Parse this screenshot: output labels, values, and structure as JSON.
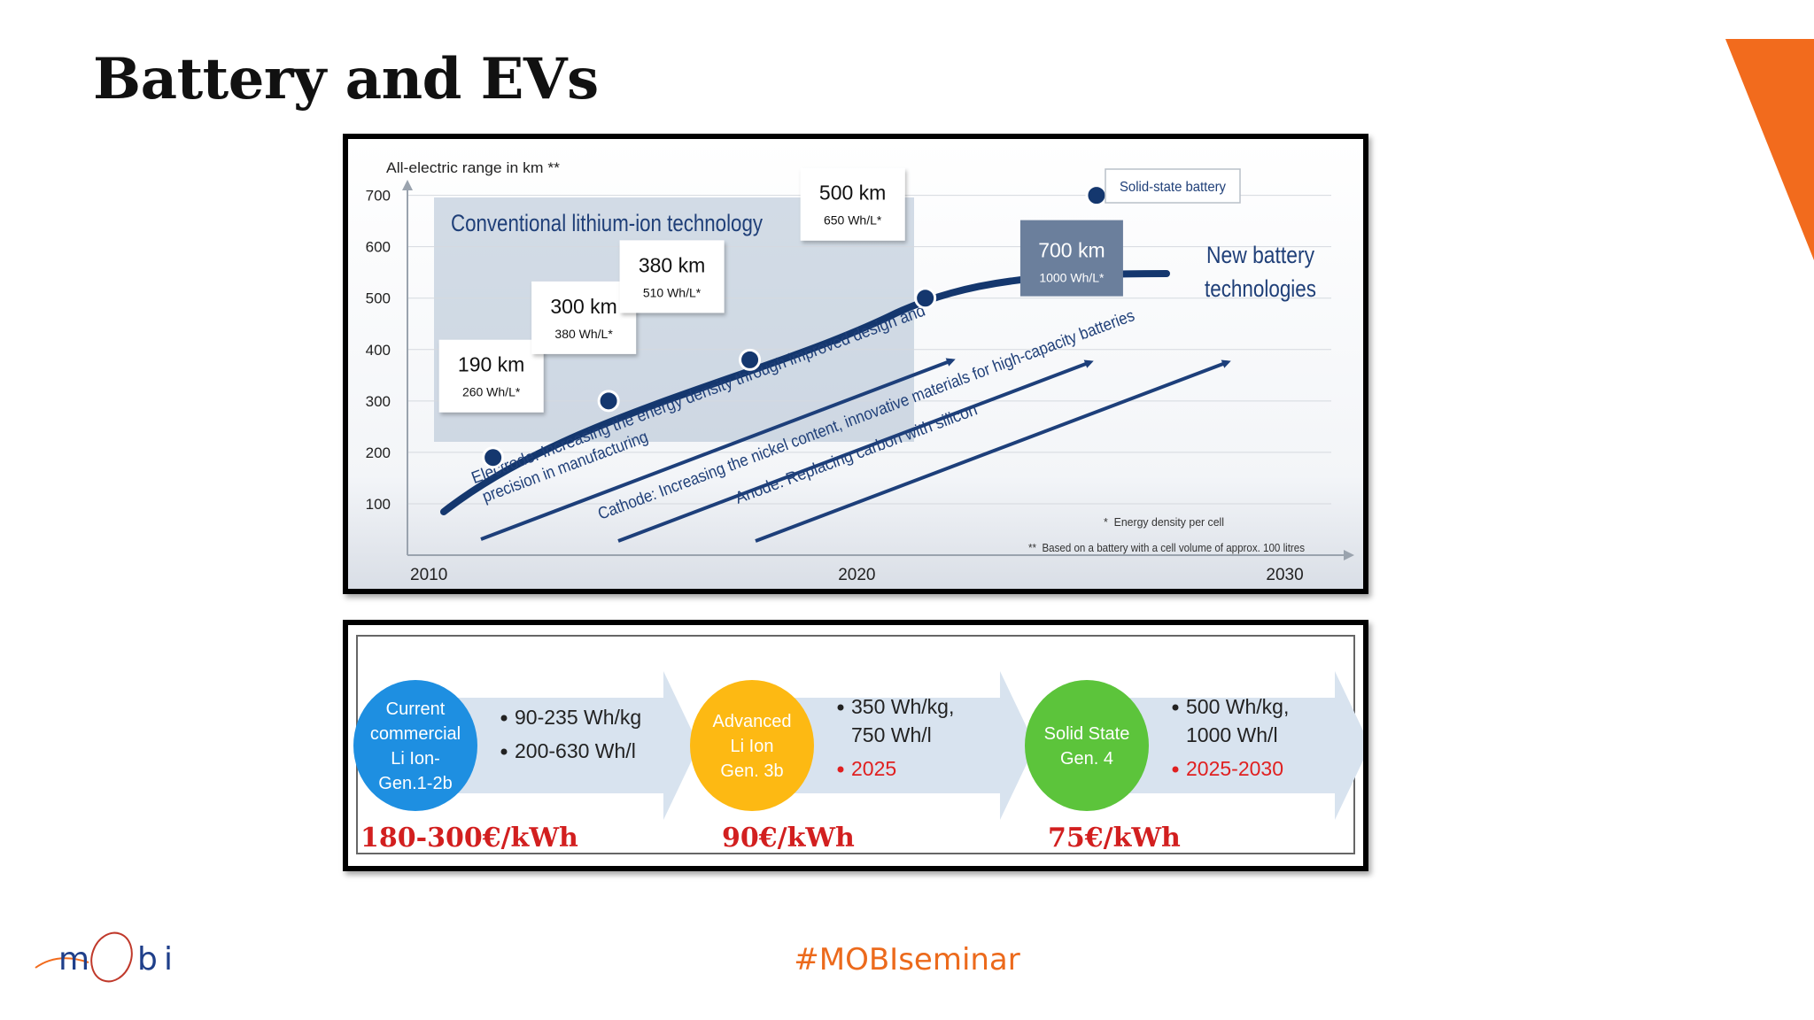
{
  "slide": {
    "title": "Battery and EVs",
    "hashtag": "#MOBIseminar",
    "logo_text": "mObi",
    "accent_color": "#f26b1d"
  },
  "chart_data": {
    "type": "line",
    "ylabel": "All-electric range in km **",
    "y_ticks": [
      "100",
      "200",
      "300",
      "400",
      "500",
      "600",
      "700"
    ],
    "ylim": [
      0,
      720
    ],
    "x_ticks": [
      "2010",
      "2020",
      "2030"
    ],
    "xlim": [
      2009.5,
      2031.5
    ],
    "series": [
      {
        "points": [
          {
            "x": 2011.5,
            "y": 190,
            "range": "190 km",
            "density": "260 Wh/L*"
          },
          {
            "x": 2014.2,
            "y": 300,
            "range": "300 km",
            "density": "380 Wh/L*"
          },
          {
            "x": 2017.5,
            "y": 380,
            "range": "380 km",
            "density": "510 Wh/L*"
          },
          {
            "x": 2021.6,
            "y": 500,
            "range": "500 km",
            "density": "650 Wh/L*"
          },
          {
            "x": 2025.6,
            "y": 700,
            "range": "700 km",
            "density": "1000 Wh/L*"
          }
        ]
      }
    ],
    "region_label": "Conventional lithium-ion technology",
    "new_tech_label": [
      "New battery",
      "technologies"
    ],
    "solid_state_label": "Solid-state battery",
    "arrows": [
      {
        "text_line1": "Electrode: Increasing the energy density through improved design and",
        "text_line2": "precision in manufacturing"
      },
      {
        "text_line1": "Cathode: Increasing the nickel content, innovative materials for high-capacity batteries"
      },
      {
        "text_line1": "Anode: Replacing carbon with silicon"
      }
    ],
    "footnotes": [
      "*  Energy density per cell",
      "**  Based on a battery with a cell volume of approx. 100 litres"
    ],
    "grid": true
  },
  "generations": [
    {
      "circle_lines": [
        "Current",
        "commercial",
        "Li Ion-",
        "Gen.1-2b"
      ],
      "circle_color": "#1e8fe1",
      "bullets": [
        {
          "text": "90-235 Wh/kg",
          "color": "#222222"
        },
        {
          "text": "200-630 Wh/l",
          "color": "#222222"
        }
      ],
      "cost": "180-300€/kWh"
    },
    {
      "circle_lines": [
        "Advanced",
        "Li Ion",
        "Gen. 3b"
      ],
      "circle_color": "#fdb913",
      "bullets": [
        {
          "text": "350 Wh/kg,",
          "text2": "750 Wh/l",
          "color": "#222222"
        },
        {
          "text": "2025",
          "color": "#e02020"
        }
      ],
      "cost": "90€/kWh"
    },
    {
      "circle_lines": [
        "Solid State",
        "Gen. 4"
      ],
      "circle_color": "#5cc43b",
      "bullets": [
        {
          "text": "500 Wh/kg,",
          "text2": "1000 Wh/l",
          "color": "#222222"
        },
        {
          "text": "2025-2030",
          "color": "#e02020"
        }
      ],
      "cost": "75€/kWh"
    }
  ]
}
